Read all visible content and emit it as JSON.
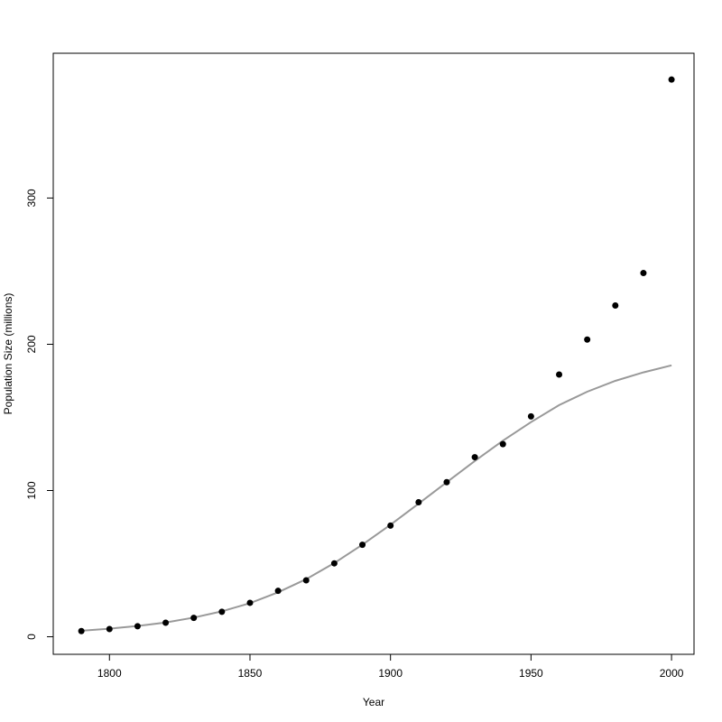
{
  "chart_data": {
    "type": "scatter",
    "xlabel": "Year",
    "ylabel": "Population Size (millions)",
    "xlim": [
      1780,
      2008
    ],
    "ylim": [
      -12,
      399
    ],
    "xticks": [
      1800,
      1850,
      1900,
      1950,
      2000
    ],
    "yticks": [
      0,
      100,
      200,
      300
    ],
    "grid": false,
    "legend": "none",
    "colors": {
      "points": "#000000",
      "fit_line": "#999999",
      "axes": "#000000"
    },
    "series": [
      {
        "kind": "points",
        "x": [
          1790,
          1800,
          1810,
          1820,
          1830,
          1840,
          1850,
          1860,
          1870,
          1880,
          1890,
          1900,
          1910,
          1920,
          1930,
          1940,
          1950,
          1960,
          1970,
          1980,
          1990,
          2000
        ],
        "y": [
          3.9,
          5.3,
          7.2,
          9.6,
          12.9,
          17.1,
          23.2,
          31.4,
          38.6,
          50.2,
          62.9,
          76.0,
          92.0,
          105.7,
          122.8,
          131.7,
          150.7,
          179.3,
          203.2,
          226.5,
          248.7,
          381
        ]
      },
      {
        "kind": "line",
        "x": [
          1790,
          1800,
          1810,
          1820,
          1830,
          1840,
          1850,
          1860,
          1870,
          1880,
          1890,
          1900,
          1910,
          1920,
          1930,
          1940,
          1950,
          1960,
          1970,
          1980,
          1990,
          2000
        ],
        "y": [
          4.1,
          5.5,
          7.4,
          9.8,
          13.1,
          17.4,
          23.0,
          30.4,
          39.4,
          50.4,
          62.9,
          76.6,
          91.0,
          105.7,
          120.2,
          134.1,
          146.8,
          158.4,
          167.6,
          175.0,
          180.8,
          185.6
        ]
      }
    ]
  }
}
